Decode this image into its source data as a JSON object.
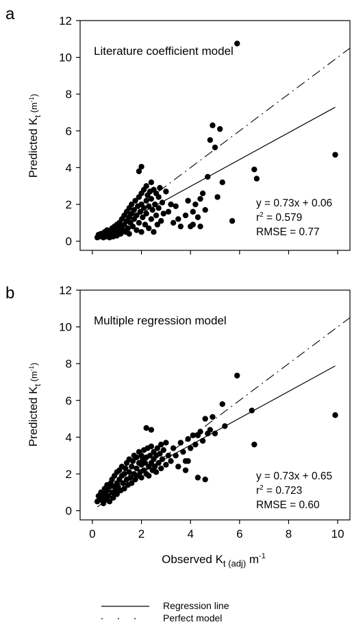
{
  "chart_data": [
    {
      "type": "scatter",
      "panel_letter": "a",
      "annotation": "Literature coefficient model",
      "stats": [
        "y = 0.73x + 0.06",
        "r",
        "2",
        " = 0.579",
        "RMSE = 0.77"
      ],
      "xlim": [
        -0.5,
        10.5
      ],
      "ylim": [
        -0.5,
        12
      ],
      "xticks": [
        0,
        2,
        4,
        6,
        8,
        10
      ],
      "yticks": [
        0,
        2,
        4,
        6,
        8,
        10,
        12
      ],
      "yticklabels": [
        "0",
        "2",
        "4",
        "6",
        "8",
        "10",
        "12"
      ],
      "ylabel": {
        "main": "Predicted K",
        "sub": "t",
        "unit_open": " (m",
        "sup": "-1",
        "unit_close": ")"
      },
      "regression": {
        "slope": 0.73,
        "intercept": 0.06,
        "x_range": [
          0.2,
          9.9
        ]
      },
      "perfect_model": {
        "x_range": [
          0.2,
          10.5
        ]
      },
      "points": [
        [
          0.2,
          0.2
        ],
        [
          0.25,
          0.35
        ],
        [
          0.3,
          0.25
        ],
        [
          0.35,
          0.4
        ],
        [
          0.4,
          0.3
        ],
        [
          0.45,
          0.2
        ],
        [
          0.5,
          0.35
        ],
        [
          0.5,
          0.5
        ],
        [
          0.55,
          0.25
        ],
        [
          0.6,
          0.4
        ],
        [
          0.6,
          0.6
        ],
        [
          0.65,
          0.3
        ],
        [
          0.7,
          0.45
        ],
        [
          0.7,
          0.2
        ],
        [
          0.75,
          0.55
        ],
        [
          0.8,
          0.35
        ],
        [
          0.8,
          0.7
        ],
        [
          0.85,
          0.25
        ],
        [
          0.9,
          0.5
        ],
        [
          0.9,
          0.8
        ],
        [
          0.95,
          0.4
        ],
        [
          1.0,
          0.6
        ],
        [
          1.0,
          0.3
        ],
        [
          1.0,
          0.9
        ],
        [
          1.05,
          0.5
        ],
        [
          1.1,
          0.7
        ],
        [
          1.1,
          1.0
        ],
        [
          1.15,
          0.4
        ],
        [
          1.2,
          0.8
        ],
        [
          1.2,
          1.2
        ],
        [
          1.25,
          0.6
        ],
        [
          1.3,
          0.9
        ],
        [
          1.3,
          1.4
        ],
        [
          1.35,
          0.5
        ],
        [
          1.4,
          1.1
        ],
        [
          1.4,
          1.6
        ],
        [
          1.45,
          0.7
        ],
        [
          1.5,
          1.3
        ],
        [
          1.5,
          0.4
        ],
        [
          1.5,
          1.8
        ],
        [
          1.55,
          1.0
        ],
        [
          1.6,
          1.5
        ],
        [
          1.6,
          2.0
        ],
        [
          1.65,
          0.8
        ],
        [
          1.7,
          1.7
        ],
        [
          1.7,
          1.2
        ],
        [
          1.75,
          2.2
        ],
        [
          1.8,
          0.6
        ],
        [
          1.8,
          1.4
        ],
        [
          1.85,
          1.9
        ],
        [
          1.9,
          2.4
        ],
        [
          1.9,
          1.0
        ],
        [
          1.95,
          1.6
        ],
        [
          2.0,
          2.0
        ],
        [
          2.0,
          2.6
        ],
        [
          2.0,
          0.5
        ],
        [
          2.05,
          1.3
        ],
        [
          2.1,
          1.8
        ],
        [
          2.1,
          2.8
        ],
        [
          2.15,
          0.9
        ],
        [
          2.2,
          2.2
        ],
        [
          2.2,
          1.5
        ],
        [
          2.25,
          2.5
        ],
        [
          2.3,
          0.7
        ],
        [
          2.3,
          1.9
        ],
        [
          2.35,
          2.7
        ],
        [
          2.4,
          1.2
        ],
        [
          2.4,
          2.3
        ],
        [
          2.45,
          1.7
        ],
        [
          2.5,
          2.8
        ],
        [
          2.5,
          0.5
        ],
        [
          2.55,
          2.0
        ],
        [
          2.6,
          1.4
        ],
        [
          2.6,
          2.6
        ],
        [
          2.65,
          0.9
        ],
        [
          2.7,
          1.8
        ],
        [
          2.7,
          2.4
        ],
        [
          2.75,
          2.9
        ],
        [
          2.8,
          1.1
        ],
        [
          2.85,
          2.1
        ],
        [
          2.9,
          1.5
        ],
        [
          1.9,
          3.8
        ],
        [
          2.0,
          4.05
        ],
        [
          2.2,
          3.0
        ],
        [
          2.4,
          3.2
        ],
        [
          3.0,
          2.7
        ],
        [
          3.1,
          1.6
        ],
        [
          3.2,
          2.0
        ],
        [
          3.3,
          1.0
        ],
        [
          3.4,
          1.9
        ],
        [
          3.5,
          1.2
        ],
        [
          3.6,
          0.8
        ],
        [
          3.8,
          1.4
        ],
        [
          3.9,
          2.2
        ],
        [
          4.0,
          0.8
        ],
        [
          4.1,
          1.6
        ],
        [
          4.2,
          2.0
        ],
        [
          4.3,
          1.3
        ],
        [
          4.4,
          2.3
        ],
        [
          4.6,
          1.7
        ],
        [
          4.1,
          0.9
        ],
        [
          4.4,
          0.8
        ],
        [
          4.5,
          2.6
        ],
        [
          4.7,
          3.5
        ],
        [
          4.8,
          5.5
        ],
        [
          4.9,
          6.3
        ],
        [
          5.0,
          5.1
        ],
        [
          5.1,
          2.4
        ],
        [
          5.2,
          6.1
        ],
        [
          5.3,
          3.2
        ],
        [
          5.7,
          1.1
        ],
        [
          5.9,
          10.75
        ],
        [
          6.6,
          3.9
        ],
        [
          6.7,
          3.4
        ],
        [
          9.9,
          4.7
        ]
      ]
    },
    {
      "type": "scatter",
      "panel_letter": "b",
      "annotation": "Multiple regression model",
      "stats": [
        "y = 0.73x + 0.65",
        "r",
        "2",
        " = 0.723",
        "RMSE = 0.60"
      ],
      "xlim": [
        -0.5,
        10.5
      ],
      "ylim": [
        -0.5,
        12
      ],
      "xticks": [
        0,
        2,
        4,
        6,
        8,
        10
      ],
      "xticklabels": [
        "0",
        "2",
        "4",
        "6",
        "8",
        "10"
      ],
      "yticks": [
        0,
        2,
        4,
        6,
        8,
        10,
        12
      ],
      "yticklabels": [
        "0",
        "2",
        "4",
        "6",
        "8",
        "10",
        "12"
      ],
      "ylabel": {
        "main": "Predicted K",
        "sub": "t",
        "unit_open": " (m",
        "sup": "-1",
        "unit_close": ")"
      },
      "xlabel": {
        "main": "Observed K",
        "sub": "t (adj)",
        "unit": " m",
        "sup": "-1"
      },
      "regression": {
        "slope": 0.73,
        "intercept": 0.65,
        "x_range": [
          0.2,
          9.9
        ]
      },
      "perfect_model": {
        "x_range": [
          0.2,
          10.5
        ]
      },
      "points": [
        [
          0.2,
          0.5
        ],
        [
          0.25,
          0.8
        ],
        [
          0.3,
          0.6
        ],
        [
          0.35,
          1.0
        ],
        [
          0.4,
          0.7
        ],
        [
          0.45,
          0.4
        ],
        [
          0.5,
          0.9
        ],
        [
          0.5,
          1.2
        ],
        [
          0.55,
          0.6
        ],
        [
          0.6,
          1.1
        ],
        [
          0.6,
          1.4
        ],
        [
          0.65,
          0.8
        ],
        [
          0.7,
          1.3
        ],
        [
          0.7,
          0.5
        ],
        [
          0.75,
          1.5
        ],
        [
          0.8,
          1.0
        ],
        [
          0.8,
          1.7
        ],
        [
          0.85,
          0.7
        ],
        [
          0.9,
          1.3
        ],
        [
          0.9,
          1.9
        ],
        [
          0.95,
          1.1
        ],
        [
          1.0,
          1.5
        ],
        [
          1.0,
          0.9
        ],
        [
          1.0,
          2.1
        ],
        [
          1.05,
          1.3
        ],
        [
          1.1,
          1.7
        ],
        [
          1.1,
          2.2
        ],
        [
          1.15,
          1.1
        ],
        [
          1.2,
          1.9
        ],
        [
          1.2,
          2.4
        ],
        [
          1.25,
          1.5
        ],
        [
          1.3,
          2.0
        ],
        [
          1.3,
          1.2
        ],
        [
          1.35,
          2.3
        ],
        [
          1.4,
          1.7
        ],
        [
          1.4,
          2.6
        ],
        [
          1.45,
          1.4
        ],
        [
          1.5,
          2.1
        ],
        [
          1.5,
          2.8
        ],
        [
          1.55,
          1.8
        ],
        [
          1.6,
          2.4
        ],
        [
          1.6,
          1.5
        ],
        [
          1.65,
          2.7
        ],
        [
          1.7,
          2.0
        ],
        [
          1.7,
          3.0
        ],
        [
          1.75,
          1.7
        ],
        [
          1.8,
          2.3
        ],
        [
          1.8,
          2.9
        ],
        [
          1.85,
          1.9
        ],
        [
          1.9,
          2.6
        ],
        [
          1.9,
          3.2
        ],
        [
          1.95,
          2.1
        ],
        [
          2.0,
          2.5
        ],
        [
          2.0,
          3.0
        ],
        [
          2.0,
          1.8
        ],
        [
          2.05,
          2.8
        ],
        [
          2.1,
          2.2
        ],
        [
          2.1,
          3.3
        ],
        [
          2.15,
          2.6
        ],
        [
          2.2,
          2.0
        ],
        [
          2.2,
          2.9
        ],
        [
          2.25,
          3.4
        ],
        [
          2.3,
          2.4
        ],
        [
          2.3,
          1.9
        ],
        [
          2.35,
          3.0
        ],
        [
          2.4,
          2.6
        ],
        [
          2.4,
          3.5
        ],
        [
          2.45,
          2.2
        ],
        [
          2.5,
          2.8
        ],
        [
          2.5,
          3.2
        ],
        [
          2.55,
          2.4
        ],
        [
          2.6,
          3.0
        ],
        [
          2.6,
          2.1
        ],
        [
          2.65,
          3.4
        ],
        [
          2.7,
          2.6
        ],
        [
          2.75,
          3.1
        ],
        [
          2.8,
          2.3
        ],
        [
          2.8,
          3.6
        ],
        [
          2.85,
          2.8
        ],
        [
          2.9,
          3.3
        ],
        [
          3.0,
          2.5
        ],
        [
          3.0,
          3.7
        ],
        [
          3.1,
          3.0
        ],
        [
          3.2,
          2.7
        ],
        [
          3.3,
          3.4
        ],
        [
          3.4,
          3.0
        ],
        [
          3.5,
          2.4
        ],
        [
          3.6,
          3.7
        ],
        [
          3.7,
          3.2
        ],
        [
          3.8,
          2.7
        ],
        [
          3.9,
          3.9
        ],
        [
          4.0,
          3.4
        ],
        [
          4.1,
          4.1
        ],
        [
          4.2,
          3.6
        ],
        [
          4.3,
          4.1
        ],
        [
          4.4,
          4.3
        ],
        [
          4.5,
          3.8
        ],
        [
          4.6,
          5.0
        ],
        [
          4.7,
          4.2
        ],
        [
          4.8,
          4.4
        ],
        [
          4.9,
          5.1
        ],
        [
          5.0,
          4.2
        ],
        [
          2.2,
          4.5
        ],
        [
          2.4,
          4.4
        ],
        [
          3.9,
          2.7
        ],
        [
          3.8,
          2.2
        ],
        [
          4.3,
          1.8
        ],
        [
          4.6,
          1.7
        ],
        [
          5.3,
          5.8
        ],
        [
          5.4,
          4.6
        ],
        [
          5.9,
          7.35
        ],
        [
          6.5,
          5.45
        ],
        [
          6.6,
          3.6
        ],
        [
          9.9,
          5.2
        ]
      ]
    }
  ],
  "legend": [
    {
      "label": "Regression line",
      "style": "solid"
    },
    {
      "label": "Perfect model",
      "style": "dash-dot"
    }
  ]
}
